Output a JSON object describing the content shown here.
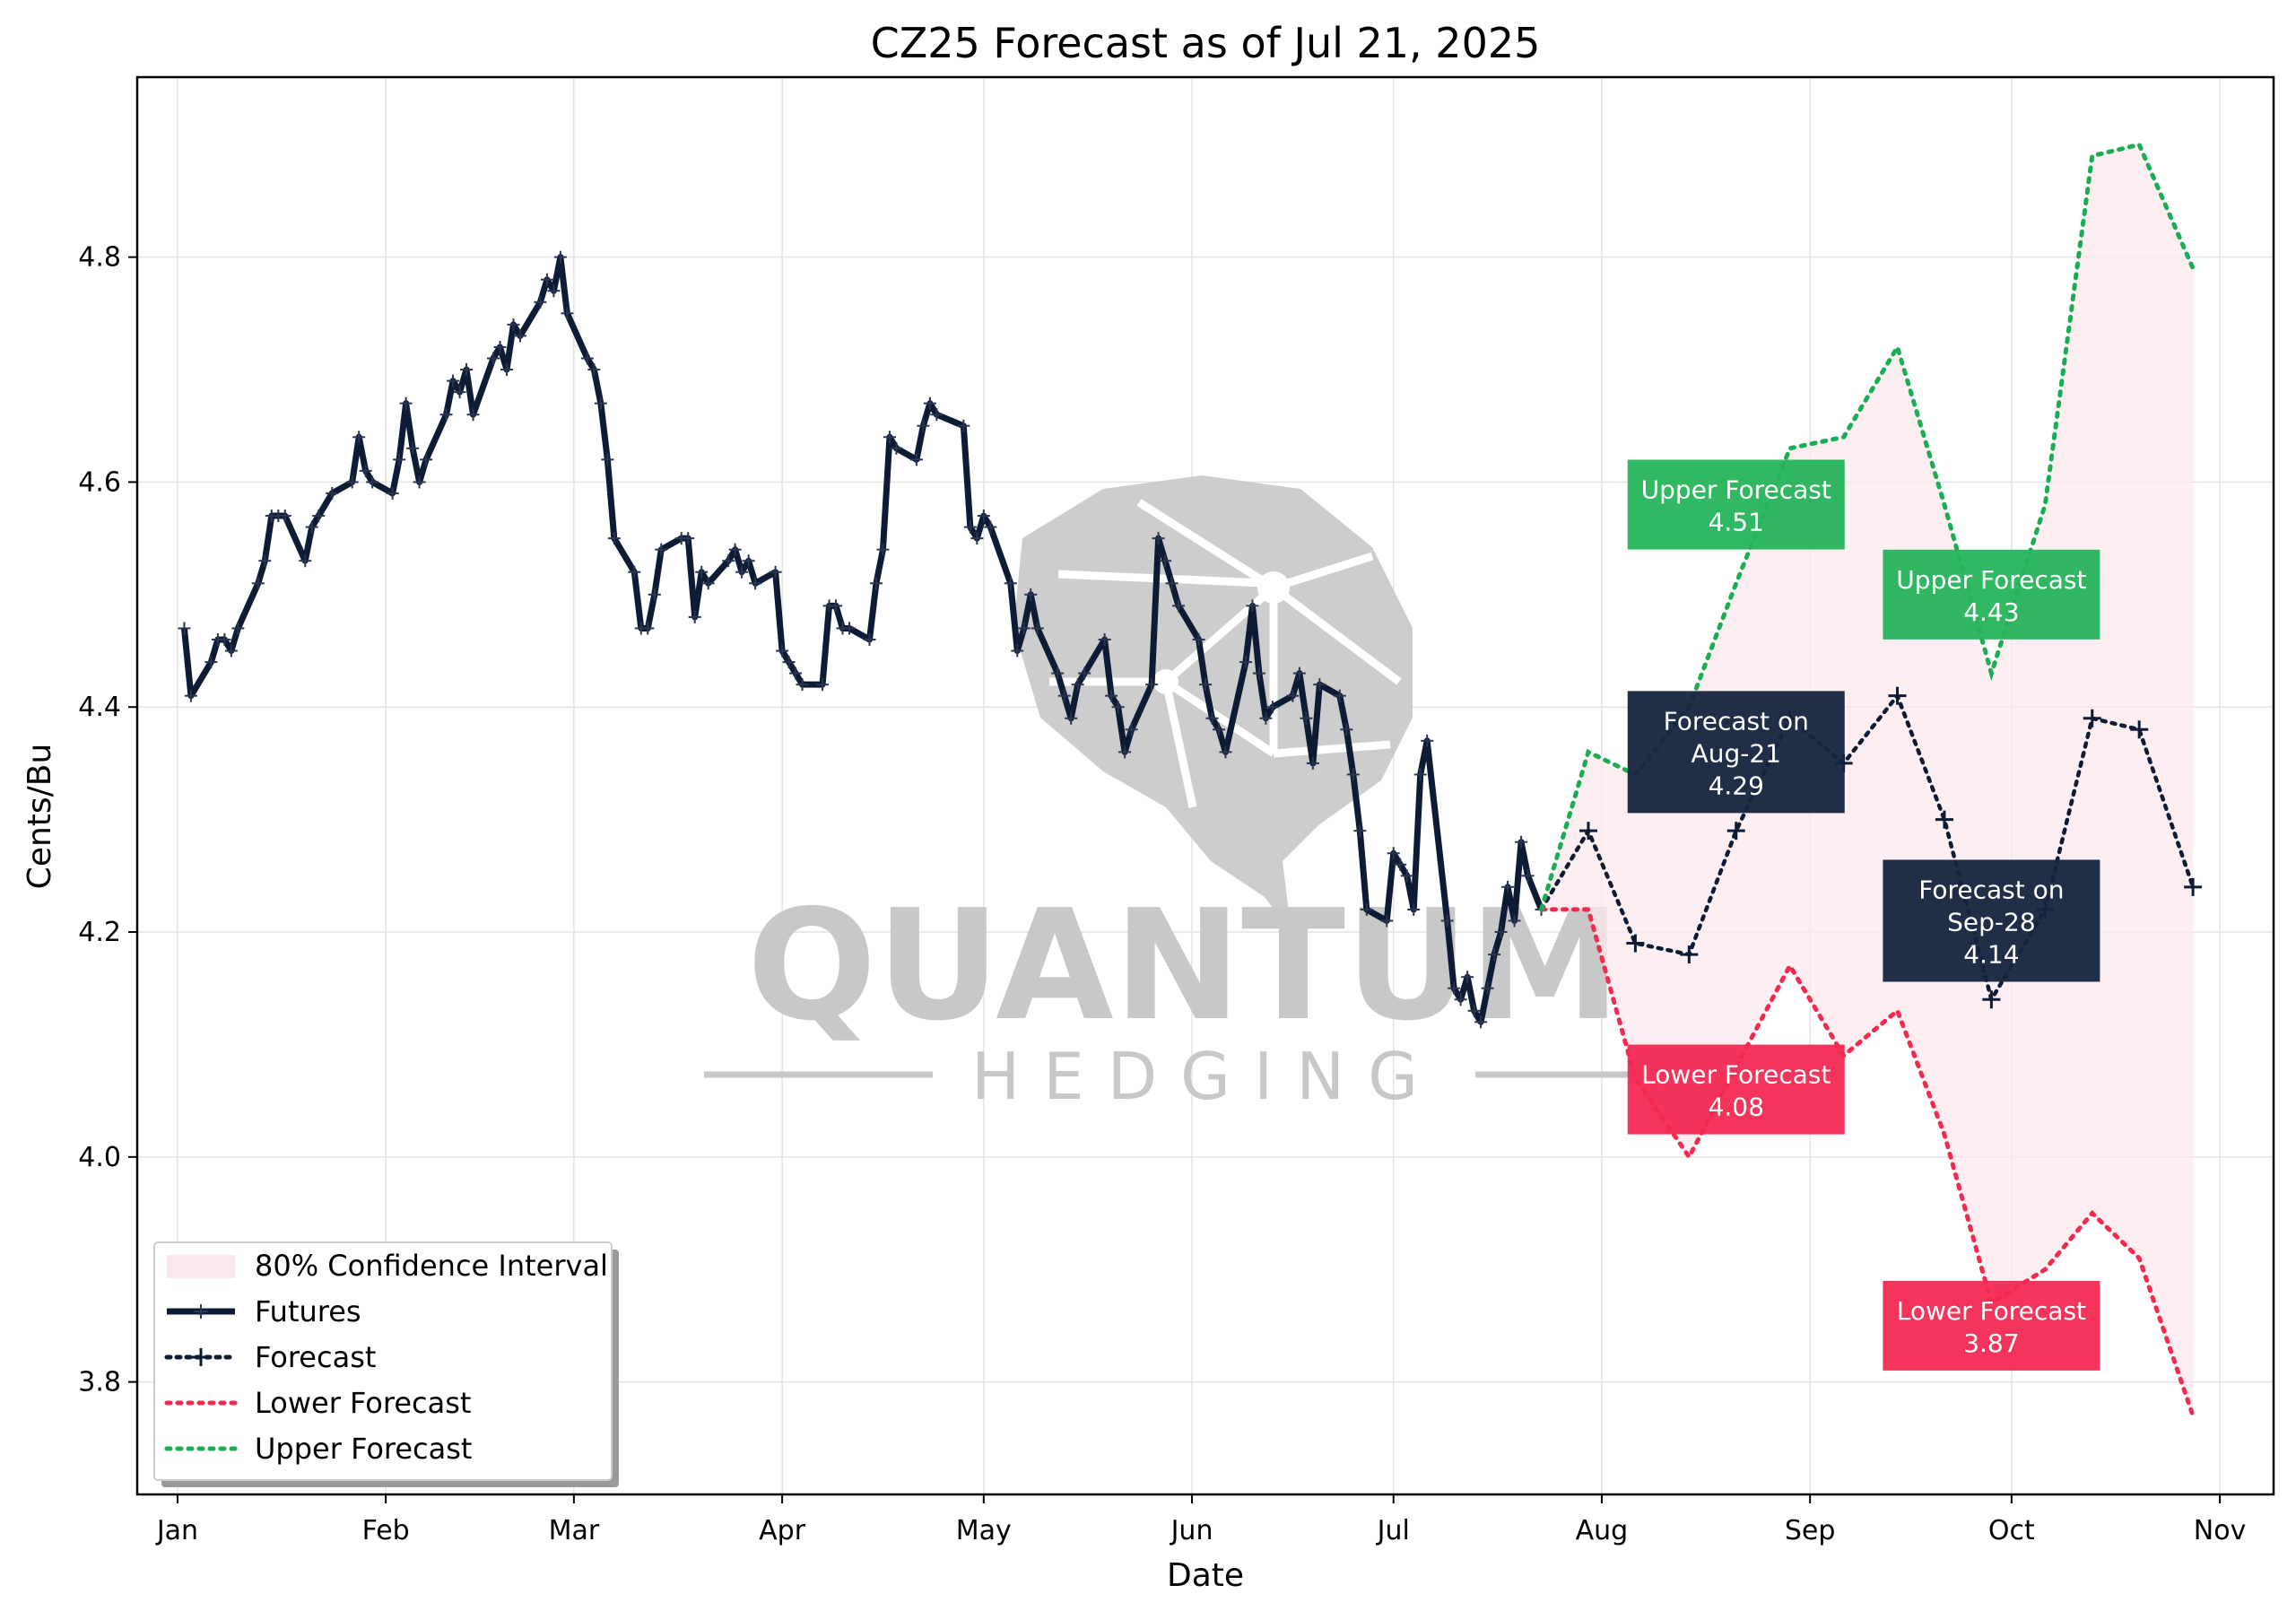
{
  "watermark": {
    "line1": "QUANTUM",
    "line2": "HEDGING"
  },
  "chart_data": {
    "type": "line",
    "title": "CZ25 Forecast as of Jul 21, 2025",
    "xlabel": "Date",
    "ylabel": "Cents/Bu",
    "ylim": [
      3.7,
      4.96
    ],
    "xlim": [
      "2024-12-26",
      "2025-11-09"
    ],
    "grid": true,
    "legend_position": "lower-left",
    "x_ticks": [
      {
        "date": "2025-01-01",
        "label": "Jan"
      },
      {
        "date": "2025-02-01",
        "label": "Feb"
      },
      {
        "date": "2025-03-01",
        "label": "Mar"
      },
      {
        "date": "2025-04-01",
        "label": "Apr"
      },
      {
        "date": "2025-05-01",
        "label": "May"
      },
      {
        "date": "2025-06-01",
        "label": "Jun"
      },
      {
        "date": "2025-07-01",
        "label": "Jul"
      },
      {
        "date": "2025-08-01",
        "label": "Aug"
      },
      {
        "date": "2025-09-01",
        "label": "Sep"
      },
      {
        "date": "2025-10-01",
        "label": "Oct"
      },
      {
        "date": "2025-11-01",
        "label": "Nov"
      }
    ],
    "y_ticks": [
      {
        "value": 3.8,
        "label": "3.8"
      },
      {
        "value": 4.0,
        "label": "4.0"
      },
      {
        "value": 4.2,
        "label": "4.2"
      },
      {
        "value": 4.4,
        "label": "4.4"
      },
      {
        "value": 4.6,
        "label": "4.6"
      },
      {
        "value": 4.8,
        "label": "4.8"
      }
    ],
    "colors": {
      "futures": "#0d1b34",
      "forecast": "#0d1b34",
      "lower": "#f4294e",
      "upper": "#1aad54",
      "band": "#fbe8ec",
      "ann_mid": "#16243f",
      "ann_lower": "#f42a53",
      "ann_upper": "#27b55b"
    },
    "legend": [
      {
        "key": "band",
        "label": "80% Confidence Interval"
      },
      {
        "key": "futures",
        "label": "Futures"
      },
      {
        "key": "forecast",
        "label": "Forecast"
      },
      {
        "key": "lower",
        "label": "Lower Forecast"
      },
      {
        "key": "upper",
        "label": "Upper Forecast"
      }
    ],
    "series": [
      {
        "key": "futures",
        "name": "Futures",
        "points": [
          [
            "2025-01-02",
            4.47
          ],
          [
            "2025-01-03",
            4.41
          ],
          [
            "2025-01-06",
            4.44
          ],
          [
            "2025-01-07",
            4.46
          ],
          [
            "2025-01-08",
            4.46
          ],
          [
            "2025-01-09",
            4.45
          ],
          [
            "2025-01-10",
            4.47
          ],
          [
            "2025-01-13",
            4.51
          ],
          [
            "2025-01-14",
            4.53
          ],
          [
            "2025-01-15",
            4.57
          ],
          [
            "2025-01-16",
            4.57
          ],
          [
            "2025-01-17",
            4.57
          ],
          [
            "2025-01-20",
            4.53
          ],
          [
            "2025-01-21",
            4.56
          ],
          [
            "2025-01-22",
            4.57
          ],
          [
            "2025-01-24",
            4.59
          ],
          [
            "2025-01-27",
            4.6
          ],
          [
            "2025-01-28",
            4.64
          ],
          [
            "2025-01-29",
            4.61
          ],
          [
            "2025-01-30",
            4.6
          ],
          [
            "2025-02-02",
            4.59
          ],
          [
            "2025-02-03",
            4.62
          ],
          [
            "2025-02-04",
            4.67
          ],
          [
            "2025-02-05",
            4.63
          ],
          [
            "2025-02-06",
            4.6
          ],
          [
            "2025-02-07",
            4.62
          ],
          [
            "2025-02-10",
            4.66
          ],
          [
            "2025-02-11",
            4.69
          ],
          [
            "2025-02-12",
            4.68
          ],
          [
            "2025-02-13",
            4.7
          ],
          [
            "2025-02-14",
            4.66
          ],
          [
            "2025-02-17",
            4.71
          ],
          [
            "2025-02-18",
            4.72
          ],
          [
            "2025-02-19",
            4.7
          ],
          [
            "2025-02-20",
            4.74
          ],
          [
            "2025-02-21",
            4.73
          ],
          [
            "2025-02-24",
            4.76
          ],
          [
            "2025-02-25",
            4.78
          ],
          [
            "2025-02-26",
            4.77
          ],
          [
            "2025-02-27",
            4.8
          ],
          [
            "2025-02-28",
            4.75
          ],
          [
            "2025-03-03",
            4.71
          ],
          [
            "2025-03-04",
            4.7
          ],
          [
            "2025-03-05",
            4.67
          ],
          [
            "2025-03-06",
            4.62
          ],
          [
            "2025-03-07",
            4.55
          ],
          [
            "2025-03-10",
            4.52
          ],
          [
            "2025-03-11",
            4.47
          ],
          [
            "2025-03-12",
            4.47
          ],
          [
            "2025-03-13",
            4.5
          ],
          [
            "2025-03-14",
            4.54
          ],
          [
            "2025-03-17",
            4.55
          ],
          [
            "2025-03-18",
            4.55
          ],
          [
            "2025-03-19",
            4.48
          ],
          [
            "2025-03-20",
            4.52
          ],
          [
            "2025-03-21",
            4.51
          ],
          [
            "2025-03-24",
            4.53
          ],
          [
            "2025-03-25",
            4.54
          ],
          [
            "2025-03-26",
            4.52
          ],
          [
            "2025-03-27",
            4.53
          ],
          [
            "2025-03-28",
            4.51
          ],
          [
            "2025-03-31",
            4.52
          ],
          [
            "2025-04-01",
            4.45
          ],
          [
            "2025-04-02",
            4.44
          ],
          [
            "2025-04-03",
            4.43
          ],
          [
            "2025-04-04",
            4.42
          ],
          [
            "2025-04-07",
            4.42
          ],
          [
            "2025-04-08",
            4.49
          ],
          [
            "2025-04-09",
            4.49
          ],
          [
            "2025-04-10",
            4.47
          ],
          [
            "2025-04-11",
            4.47
          ],
          [
            "2025-04-14",
            4.46
          ],
          [
            "2025-04-15",
            4.51
          ],
          [
            "2025-04-16",
            4.54
          ],
          [
            "2025-04-17",
            4.64
          ],
          [
            "2025-04-18",
            4.63
          ],
          [
            "2025-04-21",
            4.62
          ],
          [
            "2025-04-22",
            4.65
          ],
          [
            "2025-04-23",
            4.67
          ],
          [
            "2025-04-24",
            4.66
          ],
          [
            "2025-04-28",
            4.65
          ],
          [
            "2025-04-29",
            4.56
          ],
          [
            "2025-04-30",
            4.55
          ],
          [
            "2025-05-01",
            4.57
          ],
          [
            "2025-05-02",
            4.56
          ],
          [
            "2025-05-05",
            4.51
          ],
          [
            "2025-05-06",
            4.45
          ],
          [
            "2025-05-07",
            4.47
          ],
          [
            "2025-05-08",
            4.5
          ],
          [
            "2025-05-09",
            4.47
          ],
          [
            "2025-05-12",
            4.43
          ],
          [
            "2025-05-13",
            4.41
          ],
          [
            "2025-05-14",
            4.39
          ],
          [
            "2025-05-15",
            4.42
          ],
          [
            "2025-05-16",
            4.43
          ],
          [
            "2025-05-19",
            4.46
          ],
          [
            "2025-05-20",
            4.41
          ],
          [
            "2025-05-21",
            4.4
          ],
          [
            "2025-05-22",
            4.36
          ],
          [
            "2025-05-23",
            4.38
          ],
          [
            "2025-05-26",
            4.42
          ],
          [
            "2025-05-27",
            4.55
          ],
          [
            "2025-05-28",
            4.53
          ],
          [
            "2025-05-29",
            4.51
          ],
          [
            "2025-05-30",
            4.49
          ],
          [
            "2025-06-02",
            4.46
          ],
          [
            "2025-06-03",
            4.42
          ],
          [
            "2025-06-04",
            4.39
          ],
          [
            "2025-06-05",
            4.38
          ],
          [
            "2025-06-06",
            4.36
          ],
          [
            "2025-06-09",
            4.44
          ],
          [
            "2025-06-10",
            4.49
          ],
          [
            "2025-06-11",
            4.43
          ],
          [
            "2025-06-12",
            4.39
          ],
          [
            "2025-06-13",
            4.4
          ],
          [
            "2025-06-16",
            4.41
          ],
          [
            "2025-06-17",
            4.43
          ],
          [
            "2025-06-18",
            4.39
          ],
          [
            "2025-06-19",
            4.35
          ],
          [
            "2025-06-20",
            4.42
          ],
          [
            "2025-06-23",
            4.41
          ],
          [
            "2025-06-24",
            4.38
          ],
          [
            "2025-06-25",
            4.34
          ],
          [
            "2025-06-26",
            4.29
          ],
          [
            "2025-06-27",
            4.22
          ],
          [
            "2025-06-30",
            4.21
          ],
          [
            "2025-07-01",
            4.27
          ],
          [
            "2025-07-02",
            4.26
          ],
          [
            "2025-07-03",
            4.25
          ],
          [
            "2025-07-04",
            4.22
          ],
          [
            "2025-07-05",
            4.34
          ],
          [
            "2025-07-06",
            4.37
          ],
          [
            "2025-07-09",
            4.21
          ],
          [
            "2025-07-10",
            4.15
          ],
          [
            "2025-07-11",
            4.14
          ],
          [
            "2025-07-12",
            4.16
          ],
          [
            "2025-07-13",
            4.13
          ],
          [
            "2025-07-14",
            4.12
          ],
          [
            "2025-07-15",
            4.15
          ],
          [
            "2025-07-16",
            4.18
          ],
          [
            "2025-07-17",
            4.2
          ],
          [
            "2025-07-18",
            4.24
          ],
          [
            "2025-07-19",
            4.21
          ],
          [
            "2025-07-20",
            4.28
          ],
          [
            "2025-07-21",
            4.25
          ],
          [
            "2025-07-23",
            4.22
          ]
        ]
      },
      {
        "key": "forecast",
        "name": "Forecast",
        "points": [
          [
            "2025-07-23",
            4.22
          ],
          [
            "2025-07-30",
            4.29
          ],
          [
            "2025-08-06",
            4.19
          ],
          [
            "2025-08-14",
            4.18
          ],
          [
            "2025-08-21",
            4.29
          ],
          [
            "2025-08-29",
            4.39
          ],
          [
            "2025-09-06",
            4.35
          ],
          [
            "2025-09-14",
            4.41
          ],
          [
            "2025-09-21",
            4.3
          ],
          [
            "2025-09-28",
            4.14
          ],
          [
            "2025-10-06",
            4.22
          ],
          [
            "2025-10-13",
            4.39
          ],
          [
            "2025-10-20",
            4.38
          ],
          [
            "2025-10-28",
            4.24
          ]
        ]
      },
      {
        "key": "lower",
        "name": "Lower Forecast",
        "points": [
          [
            "2025-07-23",
            4.22
          ],
          [
            "2025-07-30",
            4.22
          ],
          [
            "2025-08-06",
            4.07
          ],
          [
            "2025-08-14",
            4.0
          ],
          [
            "2025-08-21",
            4.08
          ],
          [
            "2025-08-29",
            4.17
          ],
          [
            "2025-09-06",
            4.09
          ],
          [
            "2025-09-14",
            4.13
          ],
          [
            "2025-09-21",
            4.02
          ],
          [
            "2025-09-28",
            3.87
          ],
          [
            "2025-10-06",
            3.9
          ],
          [
            "2025-10-13",
            3.95
          ],
          [
            "2025-10-20",
            3.91
          ],
          [
            "2025-10-28",
            3.77
          ]
        ]
      },
      {
        "key": "upper",
        "name": "Upper Forecast",
        "points": [
          [
            "2025-07-23",
            4.22
          ],
          [
            "2025-07-30",
            4.36
          ],
          [
            "2025-08-06",
            4.34
          ],
          [
            "2025-08-14",
            4.4
          ],
          [
            "2025-08-21",
            4.51
          ],
          [
            "2025-08-29",
            4.63
          ],
          [
            "2025-09-06",
            4.64
          ],
          [
            "2025-09-14",
            4.72
          ],
          [
            "2025-09-21",
            4.58
          ],
          [
            "2025-09-28",
            4.43
          ],
          [
            "2025-10-06",
            4.58
          ],
          [
            "2025-10-13",
            4.89
          ],
          [
            "2025-10-20",
            4.9
          ],
          [
            "2025-10-28",
            4.79
          ]
        ]
      }
    ],
    "annotations": [
      {
        "kind": "mid",
        "date": "2025-08-21",
        "value": 4.36,
        "lines": [
          "Forecast on",
          "Aug-21",
          "4.29"
        ]
      },
      {
        "kind": "mid",
        "date": "2025-09-28",
        "value": 4.21,
        "lines": [
          "Forecast on",
          "Sep-28",
          "4.14"
        ]
      },
      {
        "kind": "lower",
        "date": "2025-08-21",
        "value": 4.06,
        "lines": [
          "Lower Forecast",
          "4.08"
        ]
      },
      {
        "kind": "lower",
        "date": "2025-09-28",
        "value": 3.85,
        "lines": [
          "Lower Forecast",
          "3.87"
        ]
      },
      {
        "kind": "upper",
        "date": "2025-08-21",
        "value": 4.58,
        "lines": [
          "Upper Forecast",
          "4.51"
        ]
      },
      {
        "kind": "upper",
        "date": "2025-09-28",
        "value": 4.5,
        "lines": [
          "Upper Forecast",
          "4.43"
        ]
      }
    ]
  }
}
